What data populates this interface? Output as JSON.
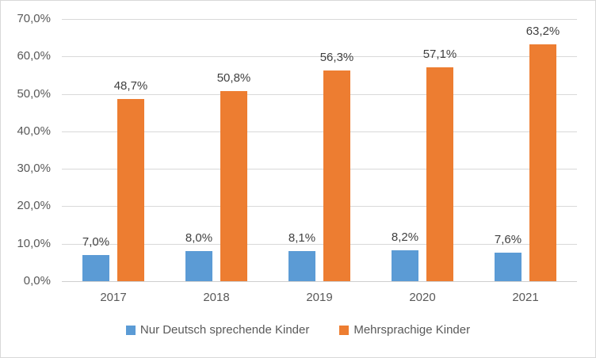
{
  "chart": {
    "background": "#FFFFFF",
    "border_color": "#D8D8D8"
  },
  "chart_data": {
    "type": "bar",
    "categories": [
      "2017",
      "2018",
      "2019",
      "2020",
      "2021"
    ],
    "series": [
      {
        "name": "Nur Deutsch sprechende Kinder",
        "color": "#5B9BD5",
        "values": [
          7.0,
          8.0,
          8.1,
          8.2,
          7.6
        ],
        "data_labels": [
          "7,0%",
          "8,0%",
          "8,1%",
          "8,2%",
          "7,6%"
        ]
      },
      {
        "name": "Mehrsprachige Kinder",
        "color": "#ED7D31",
        "values": [
          48.7,
          50.8,
          56.3,
          57.1,
          63.2
        ],
        "data_labels": [
          "48,7%",
          "50,8%",
          "56,3%",
          "57,1%",
          "63,2%"
        ]
      }
    ],
    "y_axis": {
      "min": 0,
      "max": 70,
      "step": 10,
      "tick_labels": [
        "0,0%",
        "10,0%",
        "20,0%",
        "30,0%",
        "40,0%",
        "50,0%",
        "60,0%",
        "70,0%"
      ]
    },
    "x_axis": {
      "tick_labels": [
        "2017",
        "2018",
        "2019",
        "2020",
        "2021"
      ]
    },
    "grid": true,
    "legend_position": "bottom",
    "colors": {
      "gridline": "#D9D9D9",
      "axis_line": "#CFCFCF",
      "tick_text": "#595959",
      "category_text": "#595959",
      "data_label_text": "#404040",
      "legend_text": "#595959"
    }
  }
}
